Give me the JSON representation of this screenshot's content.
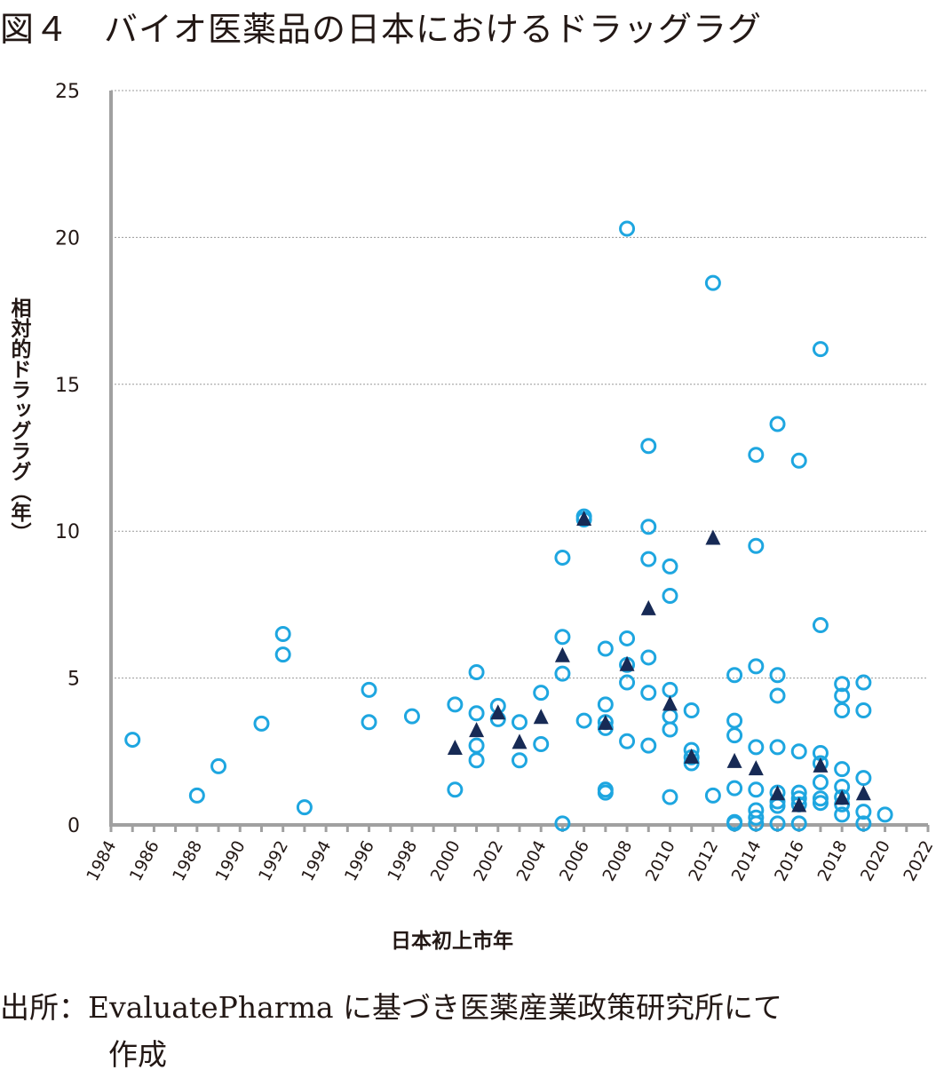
{
  "title": "図４　バイオ医薬品の日本におけるドラッグラグ",
  "source": {
    "line1": "出所：EvaluatePharma に基づき医薬産業政策研究所にて",
    "line2": "作成"
  },
  "chart_data": {
    "type": "scatter",
    "title": "図４　バイオ医薬品の日本におけるドラッグラグ",
    "xlabel": "日本初上市年",
    "ylabel": "相対的ドラッグラグ（年）",
    "xlim": [
      1984,
      2022
    ],
    "ylim": [
      0,
      25
    ],
    "xticks": [
      1984,
      1986,
      1988,
      1990,
      1992,
      1994,
      1996,
      1998,
      2000,
      2002,
      2004,
      2006,
      2008,
      2010,
      2012,
      2014,
      2016,
      2018,
      2020,
      2022
    ],
    "yticks": [
      0,
      5,
      10,
      15,
      20,
      25
    ],
    "grid": "horizontal dotted",
    "colors": {
      "circle": "#1ea6e0",
      "triangle": "#172a55",
      "axis": "#a0a0a0"
    },
    "series": [
      {
        "marker": "open-circle",
        "points": [
          [
            1985,
            2.9
          ],
          [
            1988,
            1.0
          ],
          [
            1989,
            2.0
          ],
          [
            1991,
            3.45
          ],
          [
            1992,
            6.5
          ],
          [
            1992,
            5.8
          ],
          [
            1993,
            0.6
          ],
          [
            1996,
            4.6
          ],
          [
            1996,
            3.5
          ],
          [
            1998,
            3.7
          ],
          [
            2000,
            4.1
          ],
          [
            2000,
            1.2
          ],
          [
            2001,
            5.2
          ],
          [
            2001,
            3.8
          ],
          [
            2001,
            2.7
          ],
          [
            2001,
            2.2
          ],
          [
            2002,
            4.05
          ],
          [
            2002,
            3.6
          ],
          [
            2003,
            3.5
          ],
          [
            2003,
            2.2
          ],
          [
            2004,
            4.5
          ],
          [
            2004,
            2.75
          ],
          [
            2005,
            9.1
          ],
          [
            2005,
            6.4
          ],
          [
            2005,
            5.15
          ],
          [
            2005,
            0.05
          ],
          [
            2006,
            10.5
          ],
          [
            2006,
            10.4
          ],
          [
            2006,
            3.55
          ],
          [
            2007,
            6.0
          ],
          [
            2007,
            4.1
          ],
          [
            2007,
            3.5
          ],
          [
            2007,
            3.3
          ],
          [
            2007,
            1.2
          ],
          [
            2007,
            1.1
          ],
          [
            2008,
            20.3
          ],
          [
            2008,
            6.35
          ],
          [
            2008,
            5.45
          ],
          [
            2008,
            4.85
          ],
          [
            2008,
            2.85
          ],
          [
            2009,
            12.9
          ],
          [
            2009,
            10.15
          ],
          [
            2009,
            9.05
          ],
          [
            2009,
            5.7
          ],
          [
            2009,
            4.5
          ],
          [
            2009,
            2.7
          ],
          [
            2010,
            8.8
          ],
          [
            2010,
            7.8
          ],
          [
            2010,
            4.6
          ],
          [
            2010,
            3.7
          ],
          [
            2010,
            3.25
          ],
          [
            2010,
            0.95
          ],
          [
            2011,
            3.9
          ],
          [
            2011,
            2.55
          ],
          [
            2011,
            2.3
          ],
          [
            2011,
            2.1
          ],
          [
            2012,
            18.45
          ],
          [
            2012,
            1.0
          ],
          [
            2013,
            5.1
          ],
          [
            2013,
            3.55
          ],
          [
            2013,
            3.05
          ],
          [
            2013,
            1.25
          ],
          [
            2013,
            0.1
          ],
          [
            2013,
            0.05
          ],
          [
            2014,
            12.6
          ],
          [
            2014,
            9.5
          ],
          [
            2014,
            5.4
          ],
          [
            2014,
            2.65
          ],
          [
            2014,
            1.2
          ],
          [
            2014,
            0.5
          ],
          [
            2014,
            0.25
          ],
          [
            2014,
            0.05
          ],
          [
            2015,
            13.65
          ],
          [
            2015,
            5.1
          ],
          [
            2015,
            4.4
          ],
          [
            2015,
            2.65
          ],
          [
            2015,
            1.1
          ],
          [
            2015,
            0.8
          ],
          [
            2015,
            0.65
          ],
          [
            2015,
            0.05
          ],
          [
            2016,
            12.4
          ],
          [
            2016,
            2.5
          ],
          [
            2016,
            1.1
          ],
          [
            2016,
            0.9
          ],
          [
            2016,
            0.7
          ],
          [
            2016,
            0.05
          ],
          [
            2017,
            16.2
          ],
          [
            2017,
            6.8
          ],
          [
            2017,
            2.45
          ],
          [
            2017,
            2.1
          ],
          [
            2017,
            1.45
          ],
          [
            2017,
            0.9
          ],
          [
            2017,
            0.75
          ],
          [
            2018,
            4.8
          ],
          [
            2018,
            4.4
          ],
          [
            2018,
            3.9
          ],
          [
            2018,
            1.9
          ],
          [
            2018,
            1.3
          ],
          [
            2018,
            0.95
          ],
          [
            2018,
            0.7
          ],
          [
            2018,
            0.35
          ],
          [
            2019,
            4.85
          ],
          [
            2019,
            3.9
          ],
          [
            2019,
            1.6
          ],
          [
            2019,
            0.45
          ],
          [
            2019,
            0.05
          ],
          [
            2020,
            0.35
          ]
        ]
      },
      {
        "marker": "filled-triangle",
        "points": [
          [
            2000,
            2.6
          ],
          [
            2001,
            3.2
          ],
          [
            2002,
            3.8
          ],
          [
            2003,
            2.8
          ],
          [
            2004,
            3.65
          ],
          [
            2005,
            5.75
          ],
          [
            2006,
            10.4
          ],
          [
            2007,
            3.45
          ],
          [
            2008,
            5.45
          ],
          [
            2009,
            7.35
          ],
          [
            2010,
            4.1
          ],
          [
            2011,
            2.3
          ],
          [
            2012,
            9.75
          ],
          [
            2013,
            2.15
          ],
          [
            2014,
            1.9
          ],
          [
            2015,
            1.05
          ],
          [
            2016,
            0.65
          ],
          [
            2017,
            2.0
          ],
          [
            2018,
            0.9
          ],
          [
            2019,
            1.05
          ]
        ]
      }
    ]
  }
}
